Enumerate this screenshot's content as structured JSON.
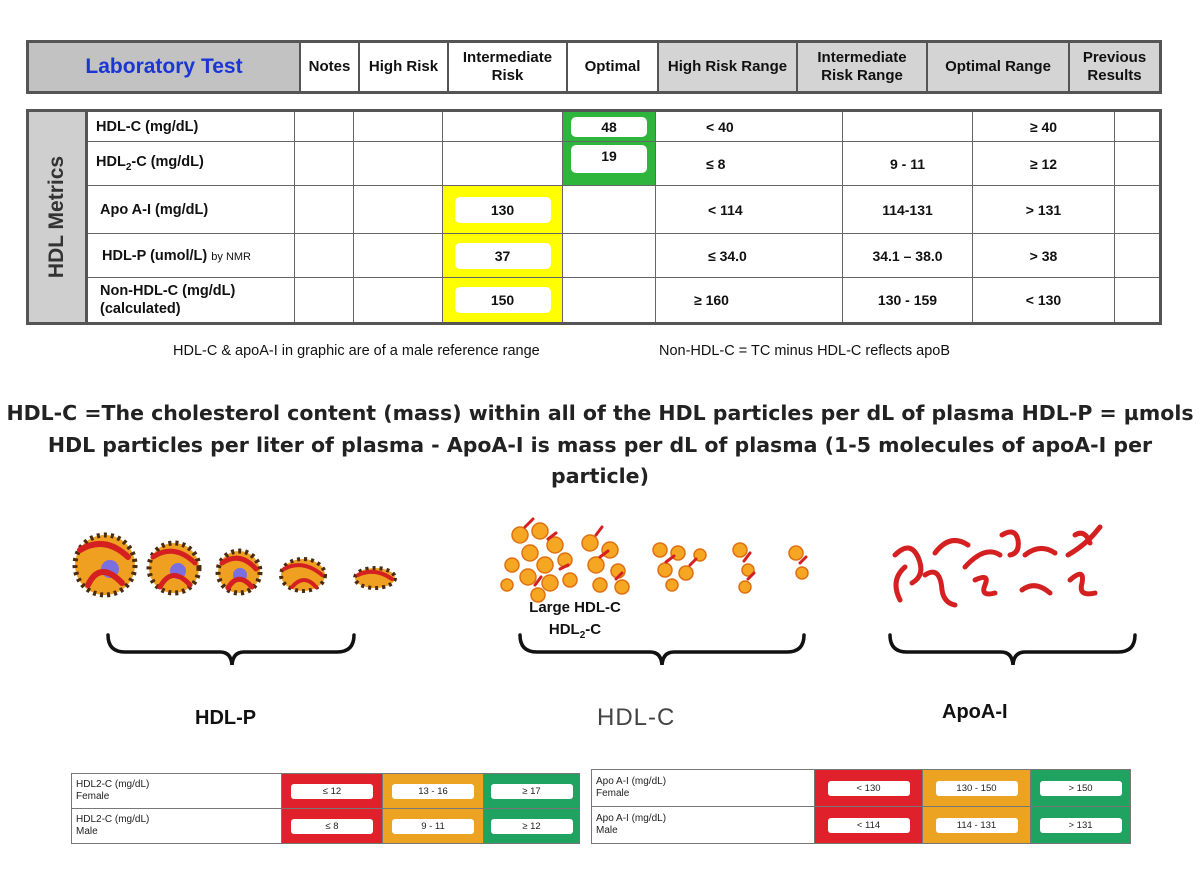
{
  "header": {
    "columns": [
      "Laboratory Test",
      "Notes",
      "High Risk",
      "Intermediate Risk",
      "Optimal",
      "High Risk Range",
      "Intermediate Risk Range",
      "Optimal Range",
      "Previous Results"
    ]
  },
  "metrics": {
    "side_label": "HDL Metrics",
    "rows": [
      {
        "label": "HDL-C (mg/dL)",
        "intermediate": "",
        "optimal": "48",
        "high_range": "< 40",
        "intermediate_range": "",
        "optimal_range": "≥ 40"
      },
      {
        "label_main": "HDL",
        "label_sub": "2",
        "label_rest": "-C (mg/dL)",
        "intermediate": "",
        "optimal": "19",
        "high_range": "≤ 8",
        "intermediate_range": "9 - 11",
        "optimal_range": "≥  12"
      },
      {
        "label": "Apo A-I (mg/dL)",
        "intermediate": "130",
        "optimal": "",
        "high_range": "< 114",
        "intermediate_range": "114-131",
        "optimal_range": ">  131"
      },
      {
        "label": "HDL-P (umol/L)",
        "label_suffix": "by NMR",
        "intermediate": "37",
        "optimal": "",
        "high_range": "≤  34.0",
        "intermediate_range": "34.1 – 38.0",
        "optimal_range": ">  38"
      },
      {
        "label": "Non-HDL-C (mg/dL)",
        "label_line2": "(calculated)",
        "intermediate": "150",
        "optimal": "",
        "high_range": "≥ 160",
        "intermediate_range": "130 - 159",
        "optimal_range": "< 130"
      }
    ]
  },
  "notes": {
    "left": "HDL-C & apoA-I in graphic are of a male reference range",
    "right": "Non-HDL-C = TC minus HDL-C reflects apoB"
  },
  "heading": {
    "line1": "HDL-C =The cholesterol content (mass) within all of the HDL particles per dL of plasma HDL-P = µmols",
    "line2": "HDL particles per liter of plasma - ApoA-I is mass per dL of plasma (1-5 molecules of apoA-I per particle)"
  },
  "illustrations": {
    "hdlc_label_line1": "Large HDL-C",
    "hdlc_label_main": "HDL",
    "hdlc_label_sub": "2",
    "hdlc_label_rest": "-C",
    "caption_hdlp": "HDL-P",
    "caption_hdlc": "HDL-C",
    "caption_apoa": "ApoA-I",
    "colors": {
      "protein": "#d42020",
      "core": "#f0a020",
      "dots": "#4a2a10"
    }
  },
  "bottom_left": {
    "rows": [
      {
        "label1": "HDL2-C (mg/dL)",
        "label2": "Female",
        "red": "≤ 12",
        "orange": "13 - 16",
        "green": "≥ 17"
      },
      {
        "label1": "HDL2-C (mg/dL)",
        "label2": "Male",
        "red": "≤ 8",
        "orange": "9 - 11",
        "green": "≥ 12"
      }
    ]
  },
  "bottom_right": {
    "rows": [
      {
        "label1": "Apo A-I (mg/dL)",
        "label2": "Female",
        "red": "< 130",
        "orange": "130 - 150",
        "green": "> 150"
      },
      {
        "label1": "Apo A-I (mg/dL)",
        "label2": "Male",
        "red": "< 114",
        "orange": "114 - 131",
        "green": "> 131"
      }
    ]
  }
}
